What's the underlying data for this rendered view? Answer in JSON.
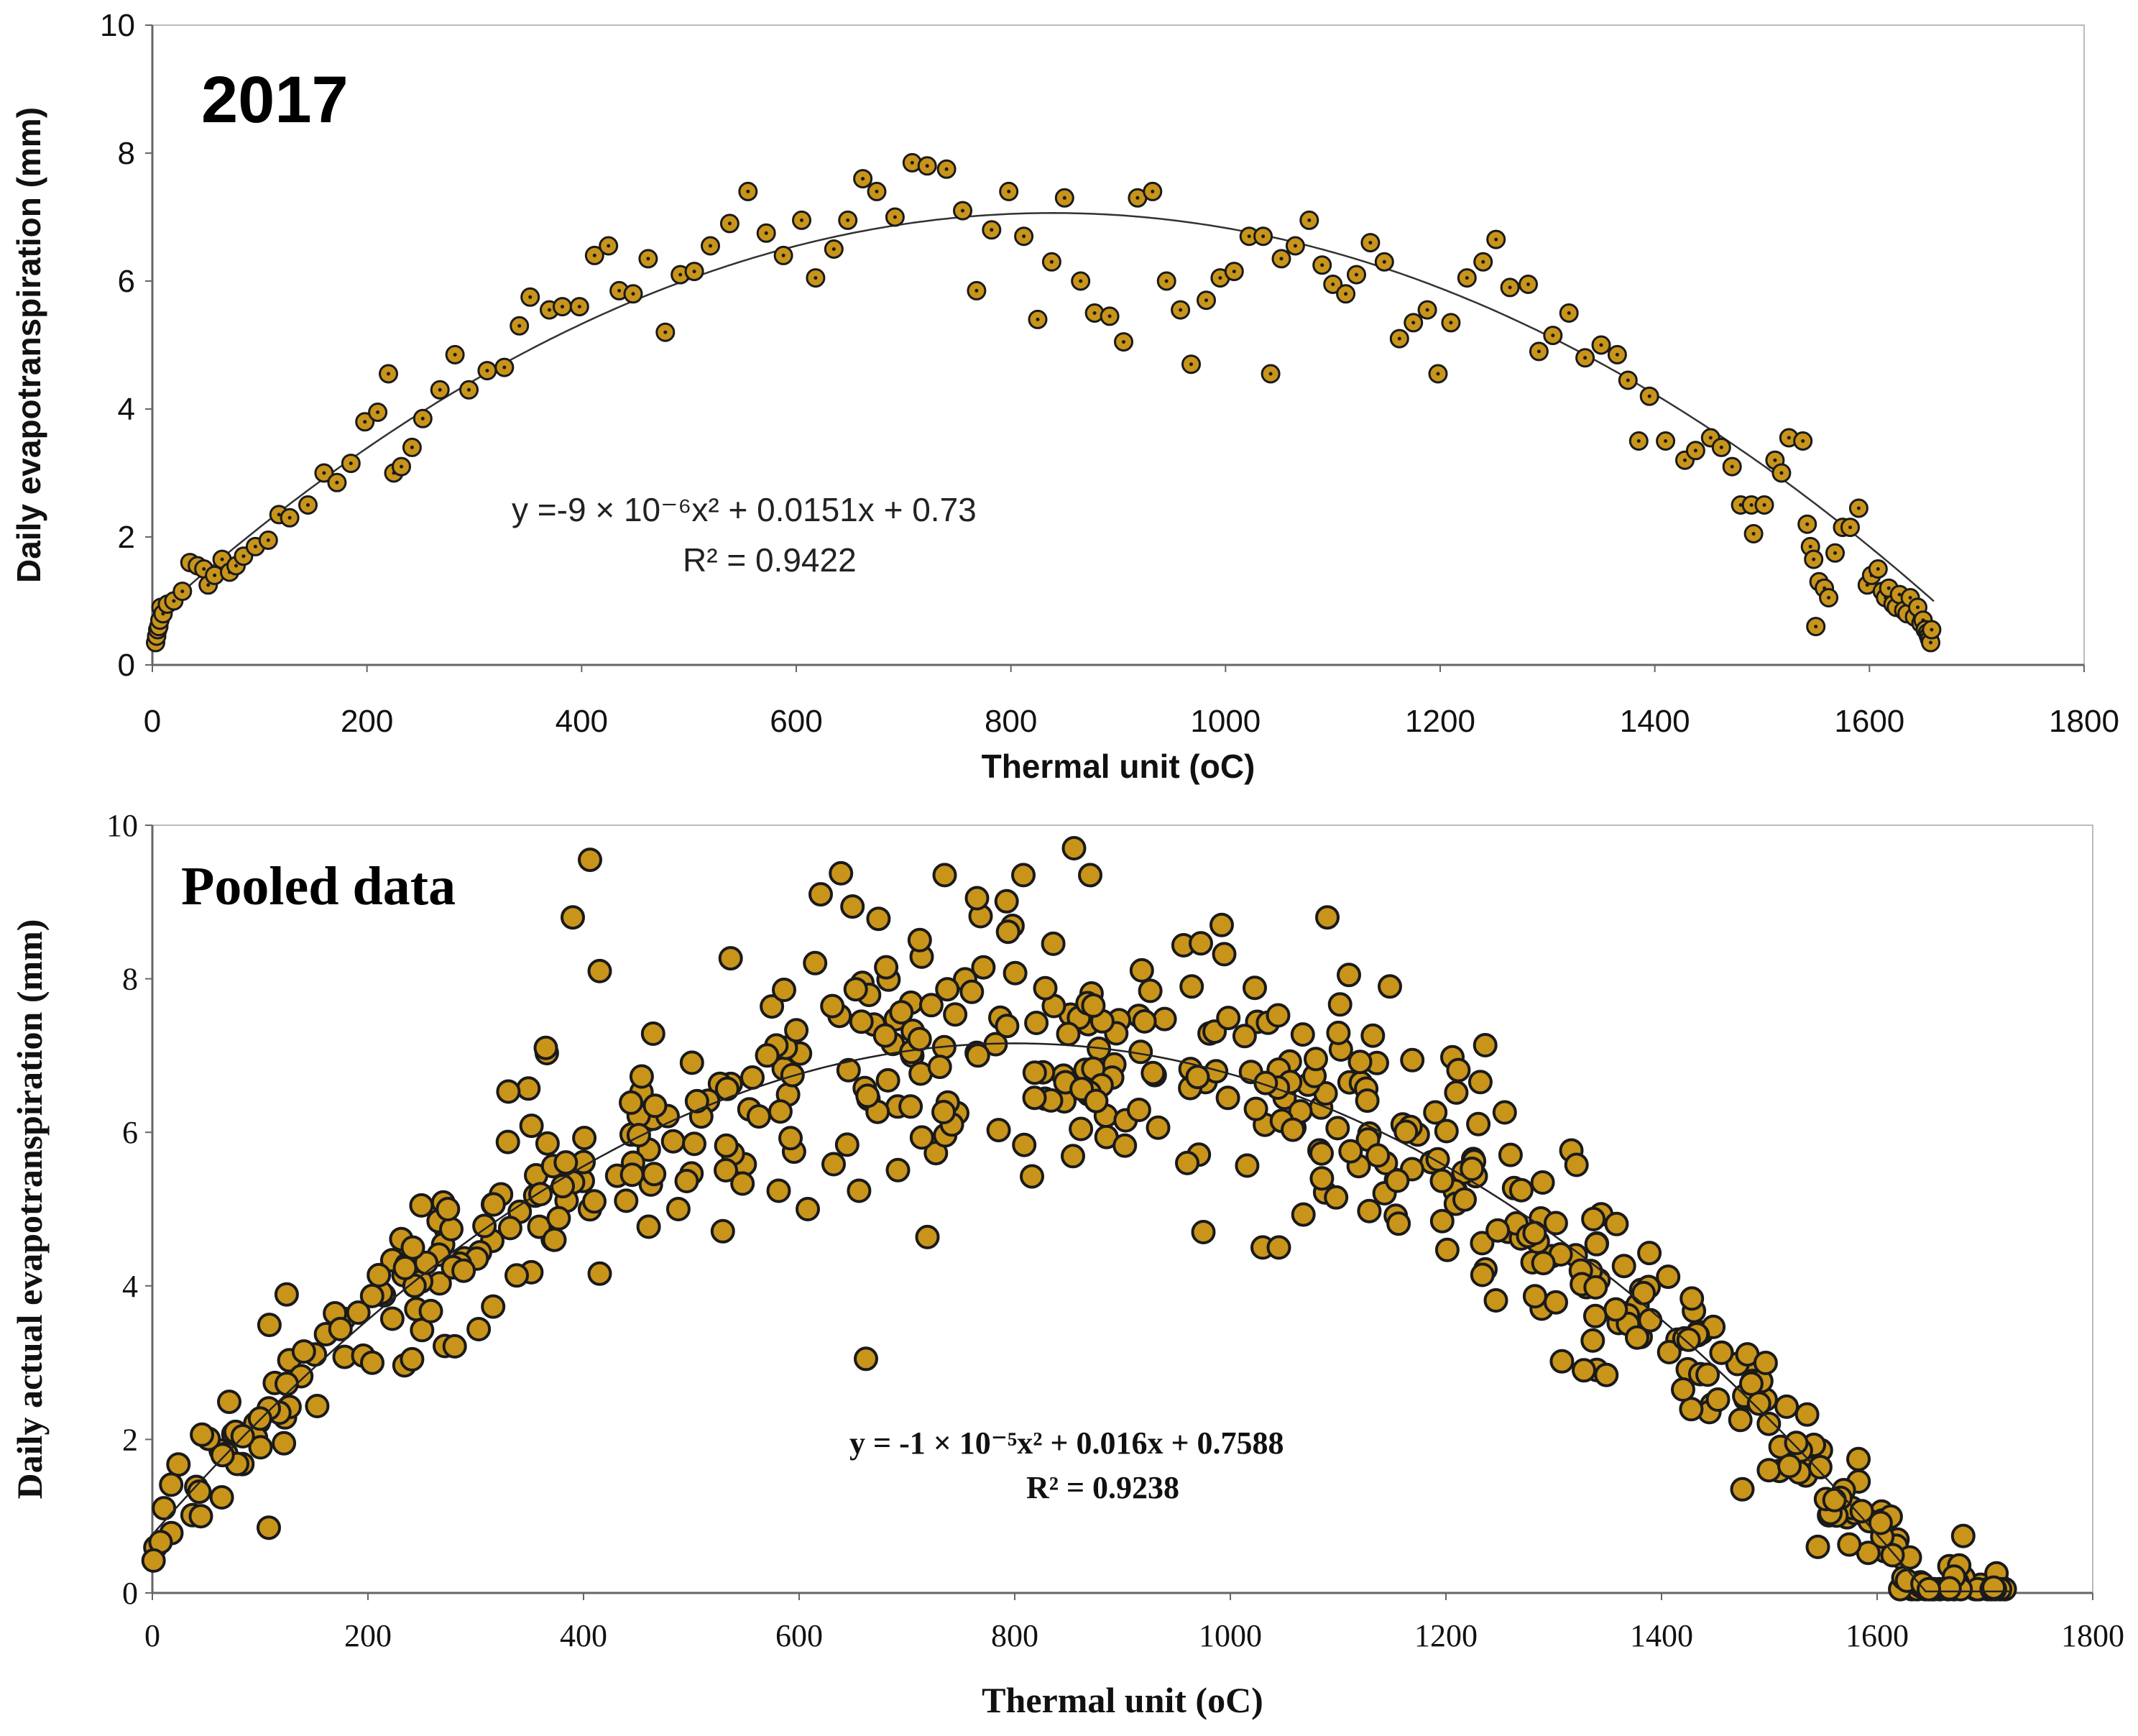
{
  "chart_data": [
    {
      "type": "scatter",
      "panel_label": "2017",
      "xlabel": "Thermal unit (oC)",
      "ylabel": "Daily evapotranspiration (mm)",
      "xlim": [
        0,
        1800
      ],
      "ylim": [
        0,
        10
      ],
      "x_ticks": [
        "0",
        "200",
        "400",
        "600",
        "800",
        "1000",
        "1200",
        "1400",
        "1600",
        "1800"
      ],
      "y_ticks": [
        "0",
        "2",
        "4",
        "6",
        "8",
        "10"
      ],
      "equation": "y =-9 × 10⁻⁶x² + 0.0151x + 0.73",
      "r2": "R² = 0.9422",
      "trendline": {
        "a": -9e-06,
        "b": 0.0151,
        "c": 0.73
      },
      "marker_color": "#c8941a",
      "points": [
        [
          3,
          0.35
        ],
        [
          4,
          0.45
        ],
        [
          5,
          0.55
        ],
        [
          6,
          0.6
        ],
        [
          7,
          0.7
        ],
        [
          8,
          0.9
        ],
        [
          10,
          0.8
        ],
        [
          14,
          0.95
        ],
        [
          20,
          1.0
        ],
        [
          28,
          1.15
        ],
        [
          35,
          1.6
        ],
        [
          42,
          1.55
        ],
        [
          48,
          1.5
        ],
        [
          52,
          1.25
        ],
        [
          58,
          1.4
        ],
        [
          65,
          1.65
        ],
        [
          72,
          1.45
        ],
        [
          78,
          1.55
        ],
        [
          85,
          1.7
        ],
        [
          96,
          1.85
        ],
        [
          108,
          1.95
        ],
        [
          118,
          2.35
        ],
        [
          128,
          2.3
        ],
        [
          145,
          2.5
        ],
        [
          160,
          3.0
        ],
        [
          172,
          2.85
        ],
        [
          185,
          3.15
        ],
        [
          198,
          3.8
        ],
        [
          210,
          3.95
        ],
        [
          220,
          4.55
        ],
        [
          225,
          3.0
        ],
        [
          232,
          3.1
        ],
        [
          242,
          3.4
        ],
        [
          252,
          3.85
        ],
        [
          268,
          4.3
        ],
        [
          282,
          4.85
        ],
        [
          295,
          4.3
        ],
        [
          312,
          4.6
        ],
        [
          328,
          4.65
        ],
        [
          342,
          5.3
        ],
        [
          352,
          5.75
        ],
        [
          370,
          5.55
        ],
        [
          382,
          5.6
        ],
        [
          398,
          5.6
        ],
        [
          412,
          6.4
        ],
        [
          425,
          6.55
        ],
        [
          435,
          5.85
        ],
        [
          448,
          5.8
        ],
        [
          462,
          6.35
        ],
        [
          478,
          5.2
        ],
        [
          492,
          6.1
        ],
        [
          505,
          6.15
        ],
        [
          520,
          6.55
        ],
        [
          538,
          6.9
        ],
        [
          555,
          7.4
        ],
        [
          572,
          6.75
        ],
        [
          588,
          6.4
        ],
        [
          605,
          6.95
        ],
        [
          618,
          6.05
        ],
        [
          635,
          6.5
        ],
        [
          648,
          6.95
        ],
        [
          662,
          7.6
        ],
        [
          675,
          7.4
        ],
        [
          692,
          7.0
        ],
        [
          708,
          7.85
        ],
        [
          722,
          7.8
        ],
        [
          740,
          7.75
        ],
        [
          755,
          7.1
        ],
        [
          768,
          5.85
        ],
        [
          782,
          6.8
        ],
        [
          798,
          7.4
        ],
        [
          812,
          6.7
        ],
        [
          825,
          5.4
        ],
        [
          838,
          6.3
        ],
        [
          850,
          7.3
        ],
        [
          865,
          6.0
        ],
        [
          878,
          5.5
        ],
        [
          892,
          5.45
        ],
        [
          905,
          5.05
        ],
        [
          918,
          7.3
        ],
        [
          932,
          7.4
        ],
        [
          945,
          6.0
        ],
        [
          958,
          5.55
        ],
        [
          968,
          4.7
        ],
        [
          982,
          5.7
        ],
        [
          995,
          6.05
        ],
        [
          1008,
          6.15
        ],
        [
          1022,
          6.7
        ],
        [
          1035,
          6.7
        ],
        [
          1042,
          4.55
        ],
        [
          1052,
          6.35
        ],
        [
          1065,
          6.55
        ],
        [
          1078,
          6.95
        ],
        [
          1090,
          6.25
        ],
        [
          1100,
          5.95
        ],
        [
          1112,
          5.8
        ],
        [
          1122,
          6.1
        ],
        [
          1135,
          6.6
        ],
        [
          1148,
          6.3
        ],
        [
          1162,
          5.1
        ],
        [
          1175,
          5.35
        ],
        [
          1188,
          5.55
        ],
        [
          1198,
          4.55
        ],
        [
          1210,
          5.35
        ],
        [
          1225,
          6.05
        ],
        [
          1240,
          6.3
        ],
        [
          1252,
          6.65
        ],
        [
          1265,
          5.9
        ],
        [
          1282,
          5.95
        ],
        [
          1292,
          4.9
        ],
        [
          1305,
          5.15
        ],
        [
          1320,
          5.5
        ],
        [
          1335,
          4.8
        ],
        [
          1350,
          5.0
        ],
        [
          1365,
          4.85
        ],
        [
          1375,
          4.45
        ],
        [
          1395,
          4.2
        ],
        [
          1385,
          3.5
        ],
        [
          1410,
          3.5
        ],
        [
          1428,
          3.2
        ],
        [
          1438,
          3.35
        ],
        [
          1452,
          3.55
        ],
        [
          1462,
          3.4
        ],
        [
          1472,
          3.1
        ],
        [
          1480,
          2.5
        ],
        [
          1490,
          2.5
        ],
        [
          1492,
          2.05
        ],
        [
          1502,
          2.5
        ],
        [
          1512,
          3.2
        ],
        [
          1518,
          3.0
        ],
        [
          1525,
          3.55
        ],
        [
          1538,
          3.5
        ],
        [
          1542,
          2.2
        ],
        [
          1545,
          1.85
        ],
        [
          1548,
          1.65
        ],
        [
          1550,
          0.6
        ],
        [
          1553,
          1.3
        ],
        [
          1558,
          1.2
        ],
        [
          1562,
          1.05
        ],
        [
          1568,
          1.75
        ],
        [
          1575,
          2.15
        ],
        [
          1582,
          2.15
        ],
        [
          1590,
          2.45
        ],
        [
          1598,
          1.25
        ],
        [
          1602,
          1.4
        ],
        [
          1608,
          1.5
        ],
        [
          1612,
          1.15
        ],
        [
          1615,
          1.05
        ],
        [
          1618,
          1.2
        ],
        [
          1622,
          0.95
        ],
        [
          1625,
          0.9
        ],
        [
          1628,
          1.1
        ],
        [
          1632,
          0.85
        ],
        [
          1635,
          0.8
        ],
        [
          1638,
          1.05
        ],
        [
          1642,
          0.75
        ],
        [
          1645,
          0.9
        ],
        [
          1648,
          0.65
        ],
        [
          1650,
          0.7
        ],
        [
          1652,
          0.55
        ],
        [
          1654,
          0.5
        ],
        [
          1655,
          0.45
        ],
        [
          1656,
          0.4
        ],
        [
          1657,
          0.35
        ],
        [
          1658,
          0.55
        ]
      ]
    },
    {
      "type": "scatter",
      "panel_label": "Pooled data",
      "xlabel": "Thermal unit (oC)",
      "ylabel": "Daily actual evapotranspiration (mm)",
      "xlim": [
        0,
        1800
      ],
      "ylim": [
        0,
        10
      ],
      "x_ticks": [
        "0",
        "200",
        "400",
        "600",
        "800",
        "1000",
        "1200",
        "1400",
        "1600",
        "1800"
      ],
      "y_ticks": [
        "0",
        "2",
        "4",
        "6",
        "8",
        "10"
      ],
      "equation": "y = -1 × 10⁻⁵x² + 0.016x + 0.7588",
      "r2": "R² = 0.9238",
      "trendline": {
        "a": -1e-05,
        "b": 0.016,
        "c": 0.7588
      },
      "marker_color": "#c8941a",
      "highlight_points": [
        [
          406,
          9.55
        ],
        [
          390,
          8.8
        ],
        [
          415,
          8.1
        ],
        [
          620,
          9.1
        ],
        [
          735,
          9.35
        ],
        [
          855,
          9.7
        ],
        [
          808,
          9.35
        ],
        [
          870,
          9.35
        ],
        [
          765,
          9.05
        ],
        [
          1090,
          8.8
        ],
        [
          992,
          8.7
        ],
        [
          662,
          3.05
        ],
        [
          108,
          0.85
        ],
        [
          1545,
          0.6
        ],
        [
          1475,
          1.35
        ],
        [
          1328,
          2.9
        ],
        [
          1420,
          2.65
        ],
        [
          608,
          5.0
        ],
        [
          975,
          4.7
        ],
        [
          1030,
          4.5
        ],
        [
          1045,
          4.5
        ],
        [
          960,
          5.6
        ],
        [
          1148,
          7.9
        ],
        [
          1110,
          8.05
        ],
        [
          365,
          7.1
        ],
        [
          410,
          5.1
        ]
      ],
      "noise_seed": 7,
      "noise_points": 560
    }
  ]
}
